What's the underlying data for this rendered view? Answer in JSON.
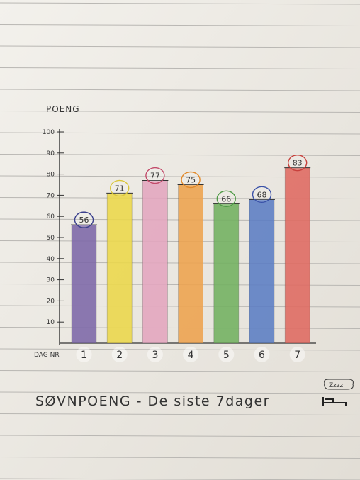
{
  "chart_data": {
    "type": "bar",
    "ylabel": "POENG",
    "xlabel": "DAG NR",
    "categories": [
      "1",
      "2",
      "3",
      "4",
      "5",
      "6",
      "7"
    ],
    "values": [
      56,
      71,
      77,
      75,
      66,
      68,
      83
    ],
    "value_labels": [
      "56",
      "71",
      "77",
      "75",
      "66",
      "68",
      "83"
    ],
    "ylim": [
      0,
      100
    ],
    "yticks": [
      "10",
      "20",
      "30",
      "40",
      "50",
      "60",
      "70",
      "80",
      "90",
      "100"
    ],
    "ytick_values": [
      10,
      20,
      30,
      40,
      50,
      60,
      70,
      80,
      90,
      100
    ],
    "bar_colors": [
      "#7d68a8",
      "#ecd84a",
      "#e4a6bf",
      "#eea34e",
      "#72b160",
      "#5c7ec4",
      "#e06a61"
    ],
    "label_colors": [
      "#5b5b5b",
      "#5b5b5b",
      "#b8478a",
      "#d87b2a",
      "#3f8e3c",
      "#3d5fa8",
      "#c03b3b"
    ],
    "circle_colors": [
      "#3a3f8c",
      "#d9c53a",
      "#c24a6a",
      "#e28a2b",
      "#4e9a45",
      "#3a52a8",
      "#c8403c"
    ],
    "grid": false
  },
  "caption": {
    "text": "SØVNPOENG - De siste 7dager",
    "sleep_icon_text": "Zzzz"
  }
}
